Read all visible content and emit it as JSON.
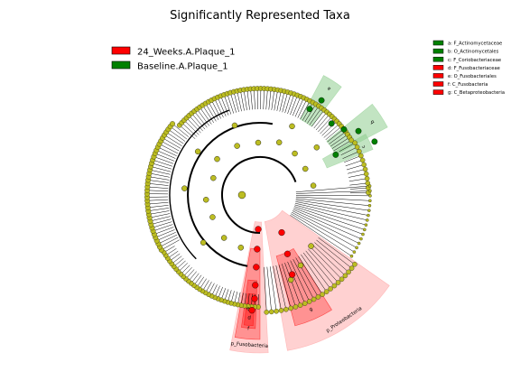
{
  "chart_data": {
    "type": "cladogram",
    "title": "Significantly Represented Taxa",
    "groups": [
      {
        "name": "24_Weeks.A.Plaque_1",
        "color": "#ff0000"
      },
      {
        "name": "Baseline.A.Plaque_1",
        "color": "#008000"
      }
    ],
    "colors": {
      "node": "#bcbd22",
      "red_shade": "#ff9999",
      "green_shade": "#8fce8f"
    },
    "taxa": [
      {
        "key": "a",
        "label": "a: F_Actinomycetaceae",
        "group": "Baseline.A.Plaque_1"
      },
      {
        "key": "b",
        "label": "b: O_Actinomycetales",
        "group": "Baseline.A.Plaque_1"
      },
      {
        "key": "c",
        "label": "c: F_Coriobacteriaceae",
        "group": "Baseline.A.Plaque_1"
      },
      {
        "key": "d",
        "label": "d: F_Fusobacteriaceae",
        "group": "24_Weeks.A.Plaque_1"
      },
      {
        "key": "e",
        "label": "e: O_Fusobacteriales",
        "group": "24_Weeks.A.Plaque_1"
      },
      {
        "key": "f",
        "label": "f: C_Fusobacteria",
        "group": "24_Weeks.A.Plaque_1"
      },
      {
        "key": "g",
        "label": "g: C_Betaproteobacteria",
        "group": "24_Weeks.A.Plaque_1"
      }
    ],
    "clade_labels": [
      {
        "text": "a",
        "group": "Baseline.A.Plaque_1"
      },
      {
        "text": "b",
        "group": "Baseline.A.Plaque_1"
      },
      {
        "text": "c",
        "group": "Baseline.A.Plaque_1"
      },
      {
        "text": "d",
        "group": "24_Weeks.A.Plaque_1"
      },
      {
        "text": "e",
        "group": "24_Weeks.A.Plaque_1"
      },
      {
        "text": "f",
        "group": "24_Weeks.A.Plaque_1"
      },
      {
        "text": "g",
        "group": "24_Weeks.A.Plaque_1"
      },
      {
        "text": "p_Fusobacteria",
        "group": "24_Weeks.A.Plaque_1"
      },
      {
        "text": "p_Proteobacteria",
        "group": "24_Weeks.A.Plaque_1"
      }
    ]
  }
}
